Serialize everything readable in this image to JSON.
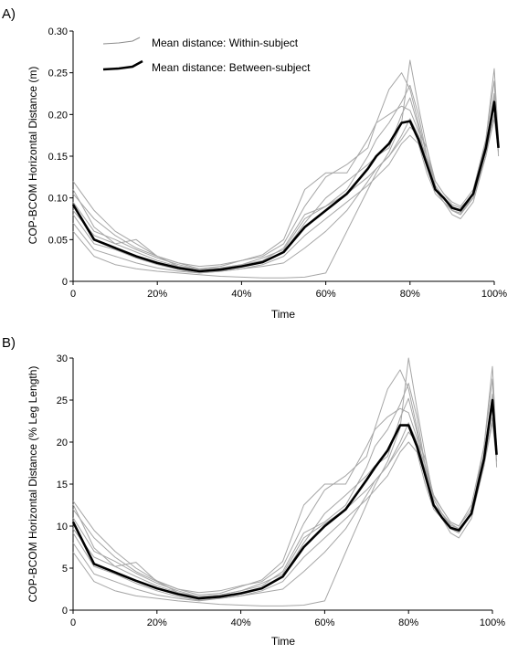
{
  "chart_data": [
    {
      "type": "line",
      "panel_label": "A)",
      "xlabel": "Time",
      "ylabel": "COP-BCOM Horizontal Distance (m)",
      "xlim": [
        0,
        100
      ],
      "ylim": [
        0,
        0.3
      ],
      "x_ticks": [
        "0",
        "20%",
        "40%",
        "60%",
        "80%",
        "100%"
      ],
      "x_tick_values": [
        0,
        20,
        40,
        60,
        80,
        100
      ],
      "y_ticks": [
        "0",
        "0.05",
        "0.10",
        "0.15",
        "0.20",
        "0.25",
        "0.30"
      ],
      "y_tick_values": [
        0,
        0.05,
        0.1,
        0.15,
        0.2,
        0.25,
        0.3
      ],
      "legend_position": "top-left",
      "legend": [
        {
          "label": "Mean distance: Within-subject",
          "style": "thin-gray"
        },
        {
          "label": "Mean distance: Between-subject",
          "style": "thick-black"
        }
      ],
      "x": [
        0,
        5,
        10,
        15,
        20,
        25,
        30,
        35,
        40,
        45,
        50,
        55,
        60,
        65,
        70,
        72,
        75,
        78,
        80,
        82,
        84,
        86,
        88,
        90,
        92,
        95,
        98,
        100,
        101
      ],
      "series": [
        {
          "style": "thick-black",
          "values": [
            0.092,
            0.05,
            0.04,
            0.03,
            0.022,
            0.016,
            0.012,
            0.014,
            0.018,
            0.023,
            0.035,
            0.065,
            0.085,
            0.105,
            0.135,
            0.15,
            0.165,
            0.19,
            0.192,
            0.17,
            0.14,
            0.11,
            0.1,
            0.088,
            0.085,
            0.105,
            0.16,
            0.215,
            0.16
          ]
        },
        {
          "style": "thin-gray",
          "values": [
            0.12,
            0.085,
            0.06,
            0.045,
            0.03,
            0.022,
            0.015,
            0.018,
            0.025,
            0.032,
            0.05,
            0.11,
            0.13,
            0.13,
            0.17,
            0.19,
            0.2,
            0.21,
            0.205,
            0.18,
            0.16,
            0.12,
            0.105,
            0.095,
            0.09,
            0.11,
            0.17,
            0.24,
            0.15
          ]
        },
        {
          "style": "thin-gray",
          "values": [
            0.095,
            0.06,
            0.05,
            0.038,
            0.028,
            0.02,
            0.014,
            0.016,
            0.02,
            0.025,
            0.04,
            0.08,
            0.09,
            0.11,
            0.15,
            0.17,
            0.19,
            0.215,
            0.235,
            0.2,
            0.15,
            0.11,
            0.095,
            0.085,
            0.08,
            0.1,
            0.17,
            0.255,
            0.17
          ]
        },
        {
          "style": "thin-gray",
          "values": [
            0.08,
            0.045,
            0.038,
            0.028,
            0.02,
            0.014,
            0.01,
            0.012,
            0.015,
            0.02,
            0.03,
            0.055,
            0.075,
            0.095,
            0.115,
            0.125,
            0.14,
            0.165,
            0.175,
            0.165,
            0.13,
            0.105,
            0.095,
            0.085,
            0.082,
            0.1,
            0.15,
            0.2,
            0.155
          ]
        },
        {
          "style": "thin-gray",
          "values": [
            0.07,
            0.038,
            0.03,
            0.022,
            0.016,
            0.012,
            0.01,
            0.012,
            0.015,
            0.018,
            0.022,
            0.04,
            0.06,
            0.085,
            0.12,
            0.135,
            0.15,
            0.17,
            0.185,
            0.175,
            0.15,
            0.12,
            0.105,
            0.092,
            0.088,
            0.105,
            0.155,
            0.21,
            0.16
          ]
        },
        {
          "style": "thin-gray",
          "values": [
            0.105,
            0.075,
            0.055,
            0.04,
            0.03,
            0.022,
            0.018,
            0.02,
            0.025,
            0.03,
            0.045,
            0.09,
            0.125,
            0.14,
            0.16,
            0.19,
            0.23,
            0.25,
            0.23,
            0.19,
            0.15,
            0.115,
            0.1,
            0.09,
            0.085,
            0.1,
            0.16,
            0.225,
            0.165
          ]
        },
        {
          "style": "thin-gray",
          "values": [
            0.06,
            0.03,
            0.02,
            0.015,
            0.012,
            0.01,
            0.008,
            0.006,
            0.005,
            0.004,
            0.004,
            0.005,
            0.01,
            0.06,
            0.11,
            0.13,
            0.155,
            0.19,
            0.265,
            0.21,
            0.16,
            0.115,
            0.1,
            0.088,
            0.085,
            0.1,
            0.15,
            0.195,
            0.155
          ]
        },
        {
          "style": "thin-gray",
          "values": [
            0.085,
            0.055,
            0.045,
            0.05,
            0.03,
            0.018,
            0.012,
            0.014,
            0.018,
            0.022,
            0.035,
            0.07,
            0.1,
            0.12,
            0.14,
            0.15,
            0.16,
            0.2,
            0.22,
            0.185,
            0.14,
            0.11,
            0.095,
            0.08,
            0.075,
            0.095,
            0.15,
            0.215,
            0.16
          ]
        },
        {
          "style": "thin-gray",
          "values": [
            0.11,
            0.065,
            0.045,
            0.035,
            0.025,
            0.018,
            0.014,
            0.016,
            0.02,
            0.028,
            0.038,
            0.075,
            0.09,
            0.105,
            0.125,
            0.135,
            0.15,
            0.175,
            0.195,
            0.175,
            0.145,
            0.11,
            0.1,
            0.085,
            0.08,
            0.1,
            0.16,
            0.22,
            0.16
          ]
        }
      ]
    },
    {
      "type": "line",
      "panel_label": "B)",
      "xlabel": "Time",
      "ylabel": "COP-BCOM Horizontal Distance (% Leg Length)",
      "xlim": [
        0,
        100
      ],
      "ylim": [
        0,
        30
      ],
      "x_ticks": [
        "0",
        "20%",
        "40%",
        "60%",
        "80%",
        "100%"
      ],
      "x_tick_values": [
        0,
        20,
        40,
        60,
        80,
        100
      ],
      "y_ticks": [
        "0",
        "5",
        "10",
        "15",
        "20",
        "25",
        "30"
      ],
      "y_tick_values": [
        0,
        5,
        10,
        15,
        20,
        25,
        30
      ],
      "x": [
        0,
        5,
        10,
        15,
        20,
        25,
        30,
        35,
        40,
        45,
        50,
        55,
        60,
        65,
        70,
        72,
        75,
        78,
        80,
        82,
        84,
        86,
        88,
        90,
        92,
        95,
        98,
        100,
        101
      ],
      "series": [
        {
          "style": "thick-black",
          "values": [
            10.5,
            5.5,
            4.5,
            3.5,
            2.6,
            1.9,
            1.4,
            1.6,
            2.0,
            2.6,
            4.0,
            7.5,
            10.0,
            12.0,
            15.5,
            17.0,
            19.0,
            22.0,
            22.0,
            19.5,
            16.0,
            12.5,
            11.0,
            9.8,
            9.5,
            11.5,
            18.0,
            25.0,
            18.5
          ]
        },
        {
          "style": "thin-gray",
          "values": [
            13.0,
            9.5,
            7.0,
            5.0,
            3.5,
            2.5,
            1.8,
            2.0,
            2.8,
            3.6,
            5.8,
            12.5,
            15.0,
            15.0,
            19.5,
            21.5,
            23.0,
            24.0,
            23.5,
            20.5,
            18.0,
            13.5,
            12.0,
            10.5,
            10.0,
            12.5,
            19.5,
            27.5,
            17.0
          ]
        },
        {
          "style": "thin-gray",
          "values": [
            11.0,
            7.0,
            5.8,
            4.4,
            3.2,
            2.3,
            1.6,
            1.8,
            2.3,
            2.9,
            4.6,
            9.2,
            10.5,
            12.5,
            17.0,
            19.5,
            21.5,
            24.5,
            27.0,
            23.0,
            17.0,
            12.5,
            11.0,
            9.7,
            9.2,
            11.5,
            19.5,
            29.0,
            19.5
          ]
        },
        {
          "style": "thin-gray",
          "values": [
            9.2,
            5.2,
            4.3,
            3.2,
            2.3,
            1.6,
            1.2,
            1.4,
            1.7,
            2.3,
            3.4,
            6.3,
            8.6,
            10.9,
            13.2,
            14.3,
            16.0,
            18.8,
            20.0,
            18.8,
            14.9,
            12.0,
            10.9,
            9.7,
            9.4,
            11.5,
            17.2,
            22.9,
            17.7
          ]
        },
        {
          "style": "thin-gray",
          "values": [
            8.0,
            4.3,
            3.4,
            2.5,
            1.8,
            1.4,
            1.1,
            1.4,
            1.7,
            2.1,
            2.5,
            4.6,
            6.9,
            9.7,
            13.7,
            15.4,
            17.2,
            19.4,
            21.2,
            20.0,
            17.2,
            13.7,
            12.0,
            10.5,
            10.0,
            12.0,
            17.7,
            24.0,
            18.3
          ]
        },
        {
          "style": "thin-gray",
          "values": [
            12.0,
            8.6,
            6.3,
            4.6,
            3.4,
            2.5,
            2.1,
            2.3,
            2.9,
            3.4,
            5.2,
            10.3,
            14.3,
            16.0,
            18.3,
            21.7,
            26.3,
            28.6,
            26.3,
            21.7,
            17.2,
            13.2,
            11.5,
            10.3,
            9.7,
            11.5,
            18.3,
            25.7,
            18.9
          ]
        },
        {
          "style": "thin-gray",
          "values": [
            6.9,
            3.4,
            2.3,
            1.7,
            1.4,
            1.1,
            0.9,
            0.7,
            0.6,
            0.5,
            0.5,
            0.6,
            1.1,
            6.9,
            12.6,
            14.9,
            17.7,
            21.7,
            30.0,
            24.0,
            18.3,
            13.2,
            11.5,
            10.1,
            9.7,
            11.5,
            17.2,
            22.3,
            17.7
          ]
        },
        {
          "style": "thin-gray",
          "values": [
            9.7,
            6.3,
            5.2,
            5.7,
            3.4,
            2.1,
            1.4,
            1.6,
            2.1,
            2.5,
            4.0,
            8.0,
            11.5,
            13.7,
            16.0,
            17.2,
            18.3,
            22.9,
            25.2,
            21.2,
            16.0,
            12.6,
            10.9,
            9.2,
            8.6,
            10.9,
            17.2,
            24.6,
            18.3
          ]
        },
        {
          "style": "thin-gray",
          "values": [
            12.6,
            7.4,
            5.2,
            4.0,
            2.9,
            2.1,
            1.6,
            1.8,
            2.3,
            3.2,
            4.3,
            8.6,
            10.3,
            12.0,
            14.3,
            15.4,
            17.2,
            20.0,
            22.3,
            20.0,
            16.6,
            12.6,
            11.5,
            9.7,
            9.2,
            11.5,
            18.3,
            25.2,
            18.3
          ]
        }
      ]
    }
  ]
}
